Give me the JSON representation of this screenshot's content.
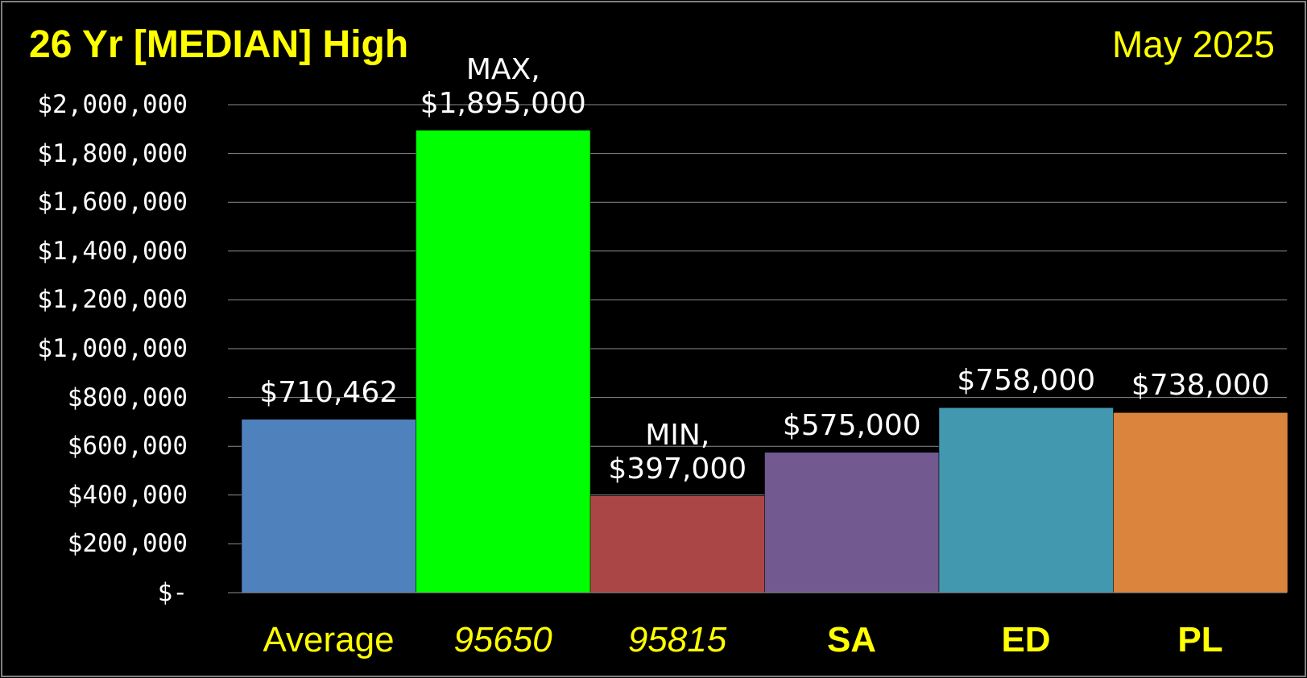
{
  "header": {
    "title": "26 Yr [MEDIAN] High",
    "date": "May 2025"
  },
  "chart_data": {
    "type": "bar",
    "title": "26 Yr [MEDIAN] High",
    "subtitle": "May 2025",
    "categories": [
      "Average",
      "95650",
      "95815",
      "SA",
      "ED",
      "PL"
    ],
    "values": [
      710462,
      1895000,
      397000,
      575000,
      758000,
      738000
    ],
    "colors": [
      "#4f81bd",
      "#00ff00",
      "#aa4646",
      "#725990",
      "#4198af",
      "#db843d"
    ],
    "data_labels": [
      [
        "$710,462"
      ],
      [
        "MAX,",
        "$1,895,000"
      ],
      [
        "MIN,",
        "$397,000"
      ],
      [
        "$575,000"
      ],
      [
        "$758,000"
      ],
      [
        "$738,000"
      ]
    ],
    "category_styles": [
      "normal",
      "italic",
      "italic",
      "bold",
      "bold",
      "bold"
    ],
    "ylim": [
      0,
      2000000
    ],
    "yticks": [
      0,
      200000,
      400000,
      600000,
      800000,
      1000000,
      1200000,
      1400000,
      1600000,
      1800000,
      2000000
    ],
    "ytick_labels": [
      "$-",
      "$200,000",
      "$400,000",
      "$600,000",
      "$800,000",
      "$1,000,000",
      "$1,200,000",
      "$1,400,000",
      "$1,600,000",
      "$1,800,000",
      "$2,000,000"
    ],
    "grid": true,
    "legend": "none",
    "background": "#000000",
    "text_color": "#ffff00"
  }
}
